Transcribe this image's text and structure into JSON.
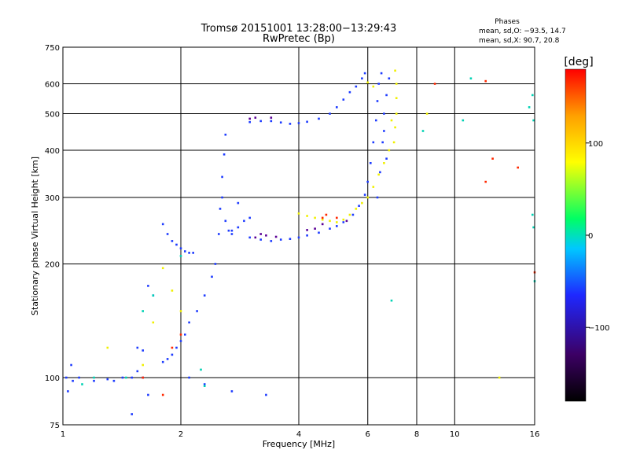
{
  "chart_data": {
    "type": "scatter",
    "title": "Tromsø 20151001 13:28:00−13:29:43",
    "subtitle": "RwPretec (Bp)",
    "stats_title": "Phases",
    "stats_lines": [
      "mean, sd,O: −93.5, 14.7",
      "mean, sd,X:  90.7, 20.8"
    ],
    "xlabel": "Frequency [MHz]",
    "ylabel": "Stationary phase Virtual Height [km]",
    "xscale": "log",
    "yscale": "log",
    "xlim": [
      1,
      16
    ],
    "ylim": [
      75,
      750
    ],
    "xticks": [
      1,
      2,
      4,
      6,
      8,
      10,
      16
    ],
    "xtick_labels": [
      "1",
      "2",
      "4",
      "6",
      "8",
      "10",
      "16"
    ],
    "yticks": [
      75,
      100,
      200,
      300,
      400,
      500,
      600,
      750
    ],
    "ytick_labels": [
      "75",
      "100",
      "200",
      "300",
      "400",
      "500",
      "600",
      "750"
    ],
    "grid": true,
    "colorbar": {
      "label": "[deg]",
      "range": [
        -180,
        180
      ],
      "ticks": [
        100,
        0,
        -100
      ],
      "tick_labels": [
        "100",
        "0",
        "−100"
      ],
      "colors": [
        "#000000",
        "#3c0064",
        "#1e28ff",
        "#00c8ff",
        "#00ff64",
        "#ffff00",
        "#ffa000",
        "#ff0000"
      ]
    },
    "series": [
      {
        "phase": -100,
        "color": "#1e3cff",
        "points": [
          [
            1.02,
            100
          ],
          [
            1.03,
            92
          ],
          [
            1.05,
            108
          ],
          [
            1.06,
            98
          ],
          [
            1.1,
            100
          ],
          [
            1.2,
            98
          ],
          [
            1.3,
            99
          ],
          [
            1.35,
            98
          ],
          [
            1.42,
            100
          ],
          [
            1.5,
            100
          ],
          [
            1.55,
            104
          ],
          [
            1.6,
            100
          ],
          [
            1.55,
            120
          ],
          [
            1.6,
            118
          ],
          [
            1.65,
            175
          ],
          [
            1.7,
            165
          ],
          [
            1.8,
            110
          ],
          [
            1.85,
            112
          ],
          [
            1.9,
            115
          ],
          [
            1.95,
            120
          ],
          [
            2.0,
            125
          ],
          [
            2.05,
            130
          ],
          [
            2.1,
            140
          ],
          [
            2.2,
            150
          ],
          [
            2.3,
            165
          ],
          [
            2.4,
            185
          ],
          [
            2.45,
            200
          ],
          [
            2.5,
            240
          ],
          [
            2.52,
            280
          ],
          [
            2.55,
            340
          ],
          [
            2.58,
            390
          ],
          [
            2.6,
            440
          ],
          [
            2.55,
            300
          ],
          [
            2.6,
            260
          ],
          [
            2.65,
            245
          ],
          [
            2.7,
            240
          ],
          [
            2.8,
            290
          ],
          [
            2.9,
            260
          ],
          [
            1.8,
            255
          ],
          [
            1.85,
            240
          ],
          [
            1.9,
            230
          ],
          [
            1.95,
            225
          ],
          [
            2.0,
            220
          ],
          [
            2.05,
            216
          ],
          [
            2.1,
            214
          ],
          [
            2.15,
            214
          ],
          [
            2.7,
            245
          ],
          [
            2.8,
            250
          ],
          [
            3.0,
            265
          ],
          [
            3.0,
            235
          ],
          [
            3.2,
            232
          ],
          [
            3.4,
            230
          ],
          [
            3.6,
            232
          ],
          [
            3.8,
            233
          ],
          [
            4.0,
            235
          ],
          [
            4.2,
            238
          ],
          [
            4.5,
            242
          ],
          [
            4.8,
            248
          ],
          [
            5.0,
            252
          ],
          [
            5.2,
            258
          ],
          [
            5.5,
            270
          ],
          [
            5.7,
            285
          ],
          [
            5.9,
            305
          ],
          [
            6.0,
            330
          ],
          [
            6.1,
            370
          ],
          [
            6.2,
            420
          ],
          [
            6.3,
            480
          ],
          [
            6.35,
            540
          ],
          [
            6.4,
            600
          ],
          [
            6.5,
            640
          ],
          [
            3.0,
            475
          ],
          [
            3.2,
            478
          ],
          [
            3.4,
            478
          ],
          [
            3.6,
            474
          ],
          [
            3.8,
            470
          ],
          [
            4.0,
            472
          ],
          [
            4.2,
            476
          ],
          [
            4.5,
            485
          ],
          [
            4.8,
            500
          ],
          [
            5.0,
            520
          ],
          [
            5.2,
            545
          ],
          [
            5.4,
            570
          ],
          [
            5.6,
            590
          ],
          [
            5.8,
            620
          ],
          [
            5.9,
            640
          ],
          [
            6.35,
            300
          ],
          [
            6.45,
            350
          ],
          [
            6.55,
            420
          ],
          [
            6.6,
            500
          ],
          [
            6.7,
            560
          ],
          [
            6.8,
            620
          ],
          [
            6.6,
            450
          ],
          [
            6.7,
            380
          ],
          [
            2.3,
            96
          ],
          [
            2.1,
            100
          ],
          [
            2.7,
            92
          ],
          [
            3.3,
            90
          ],
          [
            1.5,
            80
          ],
          [
            1.65,
            90
          ]
        ]
      },
      {
        "phase": -140,
        "color": "#5a0096",
        "points": [
          [
            3.1,
            235
          ],
          [
            3.2,
            240
          ],
          [
            3.3,
            238
          ],
          [
            3.5,
            236
          ],
          [
            4.2,
            246
          ],
          [
            4.4,
            248
          ],
          [
            4.6,
            255
          ],
          [
            5.3,
            260
          ],
          [
            3.0,
            485
          ],
          [
            3.1,
            488
          ],
          [
            3.4,
            488
          ]
        ]
      },
      {
        "phase": 100,
        "color": "#f0f000",
        "points": [
          [
            4.0,
            272
          ],
          [
            4.2,
            268
          ],
          [
            4.4,
            265
          ],
          [
            4.6,
            262
          ],
          [
            4.8,
            260
          ],
          [
            5.0,
            258
          ],
          [
            5.2,
            262
          ],
          [
            5.4,
            270
          ],
          [
            5.6,
            280
          ],
          [
            5.8,
            290
          ],
          [
            6.0,
            300
          ],
          [
            6.2,
            320
          ],
          [
            6.4,
            345
          ],
          [
            6.6,
            370
          ],
          [
            6.8,
            400
          ],
          [
            7.0,
            420
          ],
          [
            7.05,
            460
          ],
          [
            7.1,
            500
          ],
          [
            7.1,
            550
          ],
          [
            7.1,
            600
          ],
          [
            7.05,
            650
          ],
          [
            6.9,
            480
          ],
          [
            1.8,
            195
          ],
          [
            1.9,
            170
          ],
          [
            2.0,
            150
          ],
          [
            1.7,
            140
          ],
          [
            1.3,
            120
          ],
          [
            1.6,
            108
          ],
          [
            6.0,
            605
          ],
          [
            6.2,
            590
          ],
          [
            13.0,
            100
          ],
          [
            8.5,
            500
          ]
        ]
      },
      {
        "phase": 150,
        "color": "#ff2800",
        "points": [
          [
            4.6,
            265
          ],
          [
            4.7,
            270
          ],
          [
            5.0,
            265
          ],
          [
            1.9,
            120
          ],
          [
            2.0,
            130
          ],
          [
            1.8,
            90
          ],
          [
            1.6,
            100
          ],
          [
            8.9,
            600
          ],
          [
            12.0,
            330
          ],
          [
            12.5,
            380
          ],
          [
            14.5,
            360
          ],
          [
            16.0,
            190
          ],
          [
            12.0,
            610
          ]
        ]
      },
      {
        "phase": 30,
        "color": "#00d2b4",
        "points": [
          [
            1.12,
            96
          ],
          [
            1.2,
            100
          ],
          [
            1.45,
            100
          ],
          [
            1.6,
            150
          ],
          [
            1.7,
            165
          ],
          [
            2.0,
            210
          ],
          [
            2.3,
            95
          ],
          [
            2.25,
            105
          ],
          [
            6.9,
            160
          ],
          [
            8.3,
            450
          ],
          [
            10.5,
            480
          ],
          [
            15.5,
            520
          ],
          [
            15.8,
            560
          ],
          [
            15.9,
            480
          ],
          [
            11.0,
            620
          ],
          [
            15.8,
            270
          ],
          [
            15.9,
            250
          ],
          [
            16.0,
            180
          ]
        ]
      }
    ]
  }
}
